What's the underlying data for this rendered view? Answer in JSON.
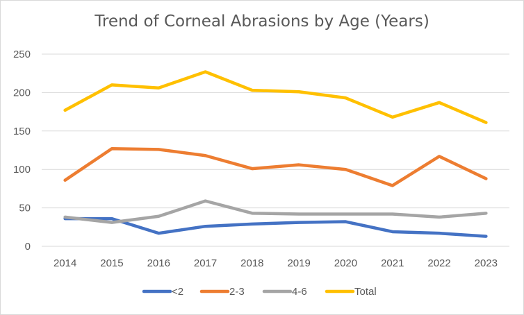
{
  "chart_data": {
    "type": "line",
    "title": "Trend of Corneal Abrasions by Age (Years)",
    "xlabel": "",
    "ylabel": "",
    "categories": [
      "2014",
      "2015",
      "2016",
      "2017",
      "2018",
      "2019",
      "2020",
      "2021",
      "2022",
      "2023"
    ],
    "ylim": [
      0,
      250
    ],
    "yticks": [
      "0",
      "50",
      "100",
      "150",
      "200",
      "250"
    ],
    "grid": true,
    "legend_position": "bottom",
    "series": [
      {
        "name": "<2",
        "color": "#4472c4",
        "values": [
          36,
          36,
          17,
          26,
          29,
          31,
          32,
          19,
          17,
          13
        ]
      },
      {
        "name": "2-3",
        "color": "#ed7d31",
        "values": [
          86,
          127,
          126,
          118,
          101,
          106,
          100,
          79,
          117,
          88
        ]
      },
      {
        "name": "4-6",
        "color": "#a5a5a5",
        "values": [
          38,
          31,
          39,
          59,
          43,
          42,
          42,
          42,
          38,
          43
        ]
      },
      {
        "name": "Total",
        "color": "#ffc000",
        "values": [
          177,
          210,
          206,
          227,
          203,
          201,
          193,
          168,
          187,
          161
        ]
      }
    ]
  }
}
